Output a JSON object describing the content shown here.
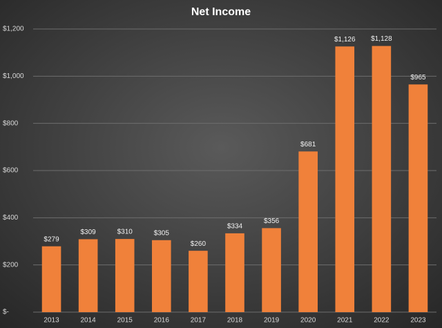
{
  "chart_data": {
    "type": "bar",
    "title": "Net Income",
    "categories": [
      "2013",
      "2014",
      "2015",
      "2016",
      "2017",
      "2018",
      "2019",
      "2020",
      "2021",
      "2022",
      "2023"
    ],
    "values": [
      279,
      309,
      310,
      305,
      260,
      334,
      356,
      681,
      1126,
      1128,
      965
    ],
    "value_labels": [
      "$279",
      "$309",
      "$310",
      "$305",
      "$260",
      "$334",
      "$356",
      "$681",
      "$1,126",
      "$1,128",
      "$965"
    ],
    "color": "#f0813a",
    "ylim": [
      0,
      1200
    ],
    "yticks": [
      {
        "value": 0,
        "label": "$-"
      },
      {
        "value": 200,
        "label": "$200"
      },
      {
        "value": 400,
        "label": "$400"
      },
      {
        "value": 600,
        "label": "$600"
      },
      {
        "value": 800,
        "label": "$800"
      },
      {
        "value": 1000,
        "label": "$1,000"
      },
      {
        "value": 1200,
        "label": "$1,200"
      }
    ],
    "grid": true
  }
}
